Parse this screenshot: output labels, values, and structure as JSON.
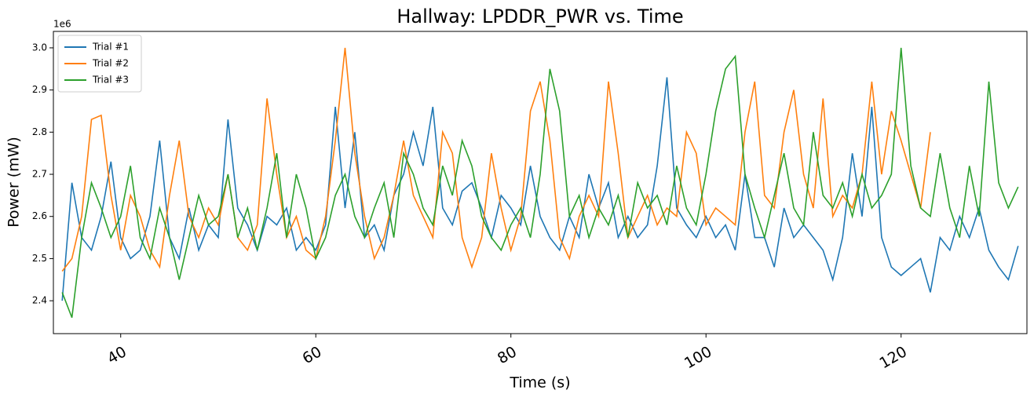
{
  "chart_data": {
    "type": "line",
    "title": "Hallway: LPDDR_PWR vs. Time",
    "xlabel": "Time (s)",
    "ylabel": "Power (mW)",
    "y_offset_label": "1e6",
    "xlim": [
      33.1,
      132.9
    ],
    "ylim": [
      2322000,
      3039000
    ],
    "xticks": [
      40,
      60,
      80,
      100,
      120
    ],
    "yticks": [
      {
        "value": 2400000,
        "label": "2.4"
      },
      {
        "value": 2500000,
        "label": "2.5"
      },
      {
        "value": 2600000,
        "label": "2.6"
      },
      {
        "value": 2700000,
        "label": "2.7"
      },
      {
        "value": 2800000,
        "label": "2.8"
      },
      {
        "value": 2900000,
        "label": "2.9"
      },
      {
        "value": 3000000,
        "label": "3.0"
      }
    ],
    "grid": false,
    "legend": "upper-left",
    "x": [
      34,
      35,
      36,
      37,
      38,
      39,
      40,
      41,
      42,
      43,
      44,
      45,
      46,
      47,
      48,
      49,
      50,
      51,
      52,
      53,
      54,
      55,
      56,
      57,
      58,
      59,
      60,
      61,
      62,
      63,
      64,
      65,
      66,
      67,
      68,
      69,
      70,
      71,
      72,
      73,
      74,
      75,
      76,
      77,
      78,
      79,
      80,
      81,
      82,
      83,
      84,
      85,
      86,
      87,
      88,
      89,
      90,
      91,
      92,
      93,
      94,
      95,
      96,
      97,
      98,
      99,
      100,
      101,
      102,
      103,
      104,
      105,
      106,
      107,
      108,
      109,
      110,
      111,
      112,
      113,
      114,
      115,
      116,
      117,
      118,
      119,
      120,
      121,
      122,
      123,
      124,
      125,
      126,
      127,
      128,
      129,
      130,
      131,
      132
    ],
    "series": [
      {
        "name": "Trial #1",
        "color": "#1f77b4",
        "values": [
          2400000,
          2680000,
          2550000,
          2520000,
          2600000,
          2730000,
          2550000,
          2500000,
          2520000,
          2600000,
          2780000,
          2550000,
          2500000,
          2620000,
          2520000,
          2580000,
          2550000,
          2830000,
          2620000,
          2580000,
          2520000,
          2600000,
          2580000,
          2620000,
          2520000,
          2550000,
          2520000,
          2580000,
          2860000,
          2620000,
          2800000,
          2550000,
          2580000,
          2520000,
          2650000,
          2700000,
          2800000,
          2720000,
          2860000,
          2620000,
          2580000,
          2660000,
          2680000,
          2620000,
          2550000,
          2650000,
          2620000,
          2580000,
          2720000,
          2600000,
          2550000,
          2520000,
          2600000,
          2550000,
          2700000,
          2620000,
          2680000,
          2550000,
          2600000,
          2550000,
          2580000,
          2720000,
          2930000,
          2620000,
          2580000,
          2550000,
          2600000,
          2550000,
          2580000,
          2520000,
          2700000,
          2550000,
          2550000,
          2480000,
          2620000,
          2550000,
          2580000,
          2550000,
          2520000,
          2450000,
          2550000,
          2750000,
          2600000,
          2860000,
          2550000,
          2480000,
          2460000,
          2480000,
          2500000,
          2420000,
          2550000,
          2520000,
          2600000,
          2550000,
          2620000,
          2520000,
          2480000,
          2450000,
          2530000
        ]
      },
      {
        "name": "Trial #2",
        "color": "#ff7f0e",
        "values": [
          2470000,
          2500000,
          2600000,
          2830000,
          2840000,
          2650000,
          2520000,
          2650000,
          2600000,
          2520000,
          2480000,
          2650000,
          2780000,
          2600000,
          2550000,
          2620000,
          2580000,
          2700000,
          2550000,
          2520000,
          2580000,
          2880000,
          2700000,
          2550000,
          2600000,
          2520000,
          2500000,
          2600000,
          2780000,
          3000000,
          2750000,
          2600000,
          2500000,
          2550000,
          2650000,
          2780000,
          2650000,
          2600000,
          2550000,
          2800000,
          2750000,
          2550000,
          2480000,
          2550000,
          2750000,
          2620000,
          2520000,
          2600000,
          2850000,
          2920000,
          2780000,
          2550000,
          2500000,
          2600000,
          2650000,
          2600000,
          2920000,
          2750000,
          2550000,
          2600000,
          2650000,
          2580000,
          2620000,
          2600000,
          2800000,
          2750000,
          2580000,
          2620000,
          2600000,
          2580000,
          2800000,
          2920000,
          2650000,
          2620000,
          2800000,
          2900000,
          2700000,
          2620000,
          2880000,
          2600000,
          2650000,
          2620000,
          2700000,
          2920000,
          2700000,
          2850000,
          2780000,
          2700000,
          2620000,
          2800000,
          null,
          null,
          null,
          null,
          null,
          null,
          null,
          null,
          null
        ]
      },
      {
        "name": "Trial #3",
        "color": "#2ca02c",
        "values": [
          2420000,
          2360000,
          2550000,
          2680000,
          2620000,
          2550000,
          2600000,
          2720000,
          2550000,
          2500000,
          2620000,
          2550000,
          2450000,
          2550000,
          2650000,
          2580000,
          2600000,
          2700000,
          2550000,
          2620000,
          2520000,
          2620000,
          2750000,
          2550000,
          2700000,
          2620000,
          2500000,
          2550000,
          2650000,
          2700000,
          2600000,
          2550000,
          2620000,
          2680000,
          2550000,
          2750000,
          2700000,
          2620000,
          2580000,
          2720000,
          2650000,
          2780000,
          2720000,
          2600000,
          2550000,
          2520000,
          2580000,
          2620000,
          2550000,
          2700000,
          2950000,
          2850000,
          2600000,
          2650000,
          2550000,
          2620000,
          2580000,
          2650000,
          2550000,
          2680000,
          2620000,
          2650000,
          2580000,
          2720000,
          2620000,
          2580000,
          2700000,
          2850000,
          2950000,
          2980000,
          2700000,
          2620000,
          2550000,
          2650000,
          2750000,
          2620000,
          2580000,
          2800000,
          2650000,
          2620000,
          2680000,
          2600000,
          2700000,
          2620000,
          2650000,
          2700000,
          3000000,
          2720000,
          2620000,
          2600000,
          2750000,
          2620000,
          2550000,
          2720000,
          2600000,
          2920000,
          2680000,
          2620000,
          2670000
        ]
      }
    ]
  }
}
